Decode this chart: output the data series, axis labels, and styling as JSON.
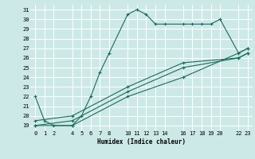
{
  "xlabel": "Humidex (Indice chaleur)",
  "bg_color": "#cce9e7",
  "grid_color": "#ffffff",
  "line_color": "#1a6b5e",
  "xlim": [
    -0.5,
    23.5
  ],
  "ylim": [
    18.5,
    31.5
  ],
  "xticks": [
    0,
    1,
    2,
    4,
    5,
    6,
    7,
    8,
    10,
    11,
    12,
    13,
    14,
    16,
    17,
    18,
    19,
    20,
    22,
    23
  ],
  "yticks": [
    19,
    20,
    21,
    22,
    23,
    24,
    25,
    26,
    27,
    28,
    29,
    30,
    31
  ],
  "lines": [
    {
      "x": [
        0,
        1,
        2,
        4,
        5,
        6,
        7,
        8,
        10,
        11,
        12,
        13,
        14,
        16,
        17,
        18,
        19,
        20,
        22,
        23
      ],
      "y": [
        22,
        19.5,
        19,
        19,
        20,
        22,
        24.5,
        26.5,
        30.5,
        31,
        30.5,
        29.5,
        29.5,
        29.5,
        29.5,
        29.5,
        29.5,
        30,
        26.5,
        27
      ]
    },
    {
      "x": [
        0,
        4,
        10,
        16,
        22,
        23
      ],
      "y": [
        19,
        19,
        22,
        24,
        26.5,
        27
      ]
    },
    {
      "x": [
        0,
        4,
        10,
        16,
        22,
        23
      ],
      "y": [
        19,
        19.5,
        22.5,
        25,
        26,
        26.5
      ]
    },
    {
      "x": [
        0,
        4,
        10,
        16,
        22,
        23
      ],
      "y": [
        19.5,
        20,
        23,
        25.5,
        26,
        26.5
      ]
    }
  ]
}
